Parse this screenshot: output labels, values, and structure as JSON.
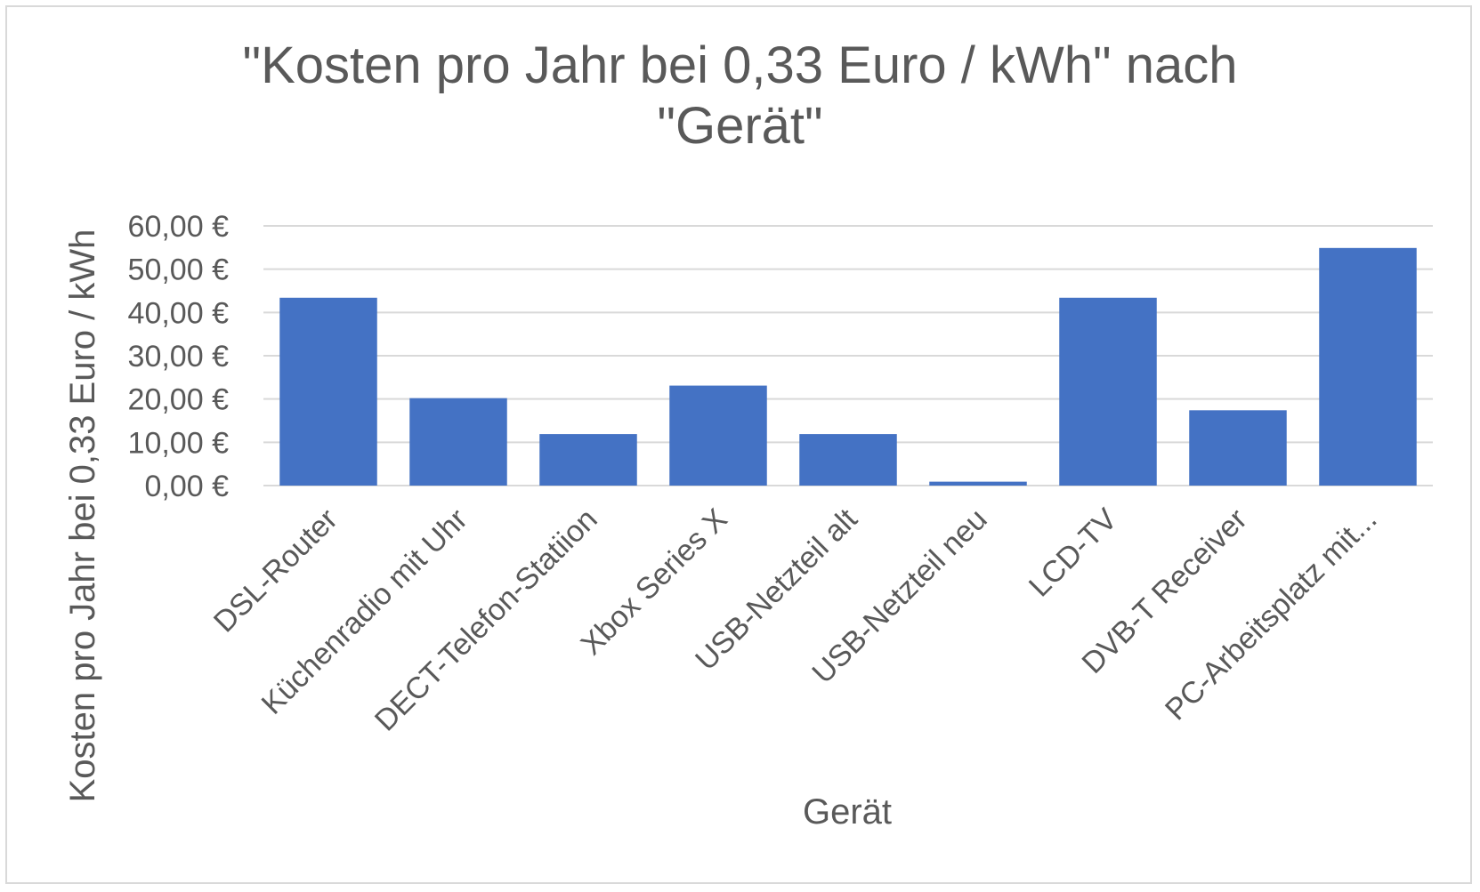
{
  "chart_data": {
    "type": "bar",
    "title_line1": "\"Kosten pro Jahr bei 0,33 Euro / kWh\" nach",
    "title_line2": "\"Gerät\"",
    "xlabel": "Gerät",
    "ylabel": "Kosten pro Jahr bei 0,33 Euro / kWh",
    "categories": [
      "DSL-Router",
      "Küchenradio mit Uhr",
      "DECT-Telefon-Statiion",
      "Xbox Series X",
      "USB-Netzteil alt",
      "USB-Netzteil neu",
      "LCD-TV",
      "DVB-T Receiver",
      "PC-Arbeitsplatz mit..."
    ],
    "values": [
      43.4,
      20.2,
      11.9,
      23.1,
      11.9,
      0.9,
      43.4,
      17.4,
      54.9
    ],
    "ylim": [
      0,
      60
    ],
    "yticks": [
      "0,00 €",
      "10,00 €",
      "20,00 €",
      "30,00 €",
      "40,00 €",
      "50,00 €",
      "60,00 €"
    ],
    "grid": true,
    "bar_color": "#4472c4",
    "grid_color": "#d9d9d9"
  }
}
